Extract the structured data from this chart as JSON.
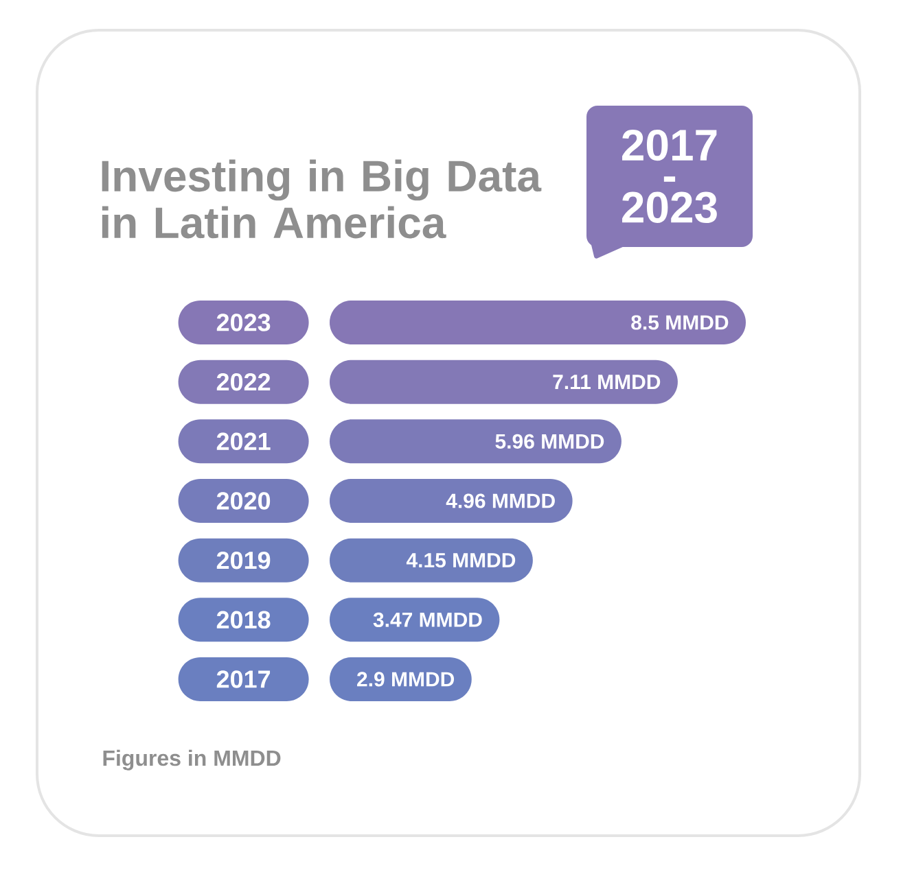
{
  "chart_data": {
    "type": "bar",
    "orientation": "horizontal",
    "title": "Investing in Big Data in Latin America",
    "subtitle": "2017 - 2023",
    "annotations": [
      "Figures in MMDD"
    ],
    "categories": [
      "2023",
      "2022",
      "2021",
      "2020",
      "2019",
      "2018",
      "2017"
    ],
    "values": [
      8.5,
      7.11,
      5.96,
      4.96,
      4.15,
      3.47,
      2.9
    ],
    "value_labels": [
      "8.5 MMDD",
      "7.11 MMDD",
      "5.96 MMDD",
      "4.96 MMDD",
      "4.15 MMDD",
      "3.47 MMDD",
      "2.9 MMDD"
    ],
    "colors": [
      "#8677b5",
      "#8379b6",
      "#7c7ab8",
      "#757cbb",
      "#6e7ebd",
      "#6a7fc0",
      "#6a7fc0"
    ]
  }
}
